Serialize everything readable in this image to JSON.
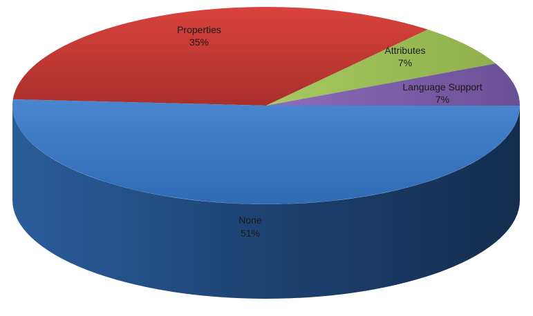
{
  "chart_data": {
    "type": "pie",
    "title": "",
    "slices": [
      {
        "label": "Properties",
        "value": 35,
        "value_label": "35%",
        "color": "#c0392b"
      },
      {
        "label": "Attributes",
        "value": 7,
        "value_label": "7%",
        "color": "#9bbb59"
      },
      {
        "label": "Language Support",
        "value": 7,
        "value_label": "7%",
        "color": "#7b5ea7"
      },
      {
        "label": "None",
        "value": 51,
        "value_label": "51%",
        "color": "#3b78c4"
      }
    ],
    "style": "3d",
    "legend": "none"
  }
}
